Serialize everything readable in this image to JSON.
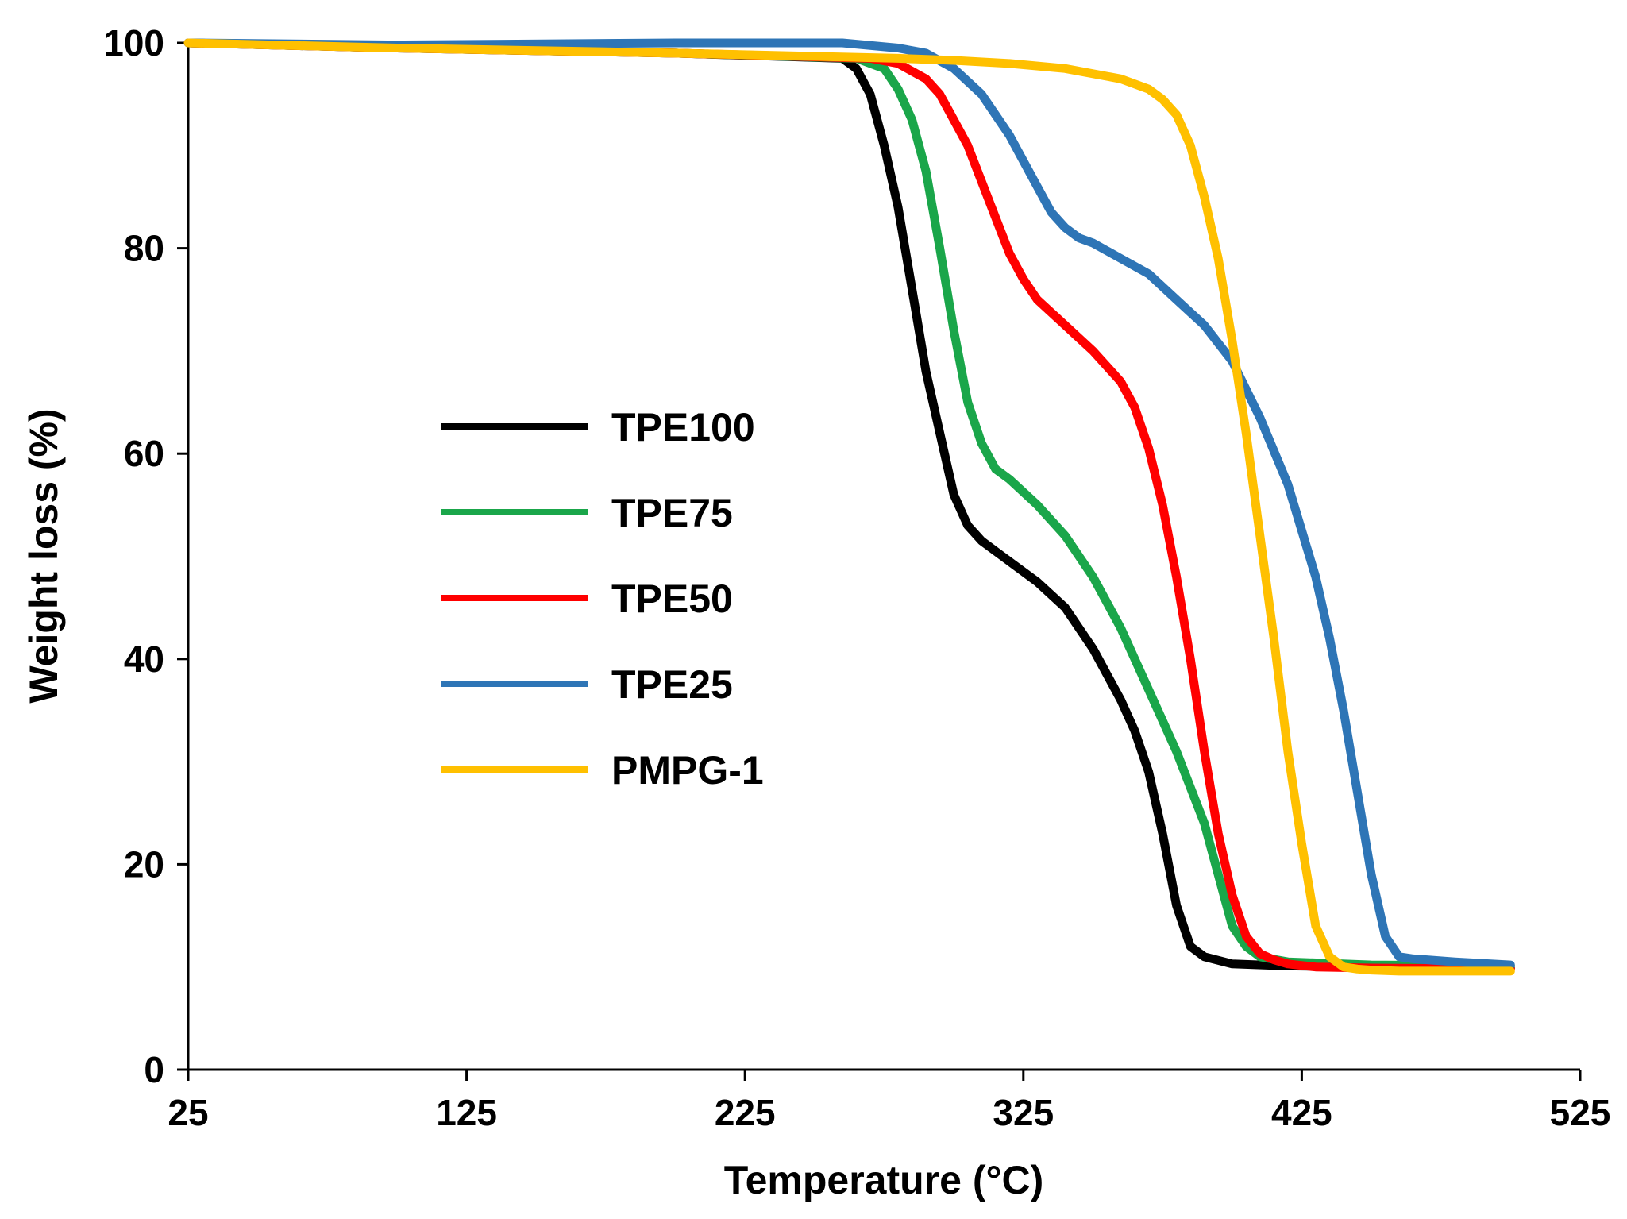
{
  "chart_data": {
    "type": "line",
    "title": "",
    "xlabel": "Temperature (°C)",
    "ylabel": "Weight loss (%)",
    "xlim": [
      25,
      525
    ],
    "ylim": [
      0,
      100
    ],
    "xticks": [
      25,
      125,
      225,
      325,
      425,
      525
    ],
    "yticks": [
      0,
      20,
      40,
      60,
      80,
      100
    ],
    "grid": false,
    "legend_position": "center-left",
    "series": [
      {
        "name": "TPE100",
        "color": "#000000",
        "x": [
          25,
          100,
          200,
          260,
          265,
          270,
          275,
          280,
          285,
          290,
          295,
          300,
          305,
          310,
          315,
          320,
          330,
          340,
          350,
          360,
          365,
          370,
          375,
          380,
          385,
          390,
          400,
          420,
          450,
          500
        ],
        "y": [
          100,
          99.5,
          99,
          98.5,
          97.5,
          95,
          90,
          84,
          76,
          68,
          62,
          56,
          53,
          51.5,
          50.5,
          49.5,
          47.5,
          45,
          41,
          36,
          33,
          29,
          23,
          16,
          12,
          11,
          10.3,
          10.1,
          10,
          9.9
        ]
      },
      {
        "name": "TPE75",
        "color": "#1aa64a",
        "x": [
          25,
          100,
          200,
          265,
          275,
          280,
          285,
          290,
          295,
          300,
          305,
          310,
          315,
          320,
          330,
          340,
          350,
          360,
          370,
          380,
          390,
          395,
          400,
          405,
          410,
          420,
          450,
          500
        ],
        "y": [
          100,
          99.5,
          99,
          98.5,
          97.5,
          95.5,
          92.5,
          87.5,
          80,
          72,
          65,
          61,
          58.5,
          57.5,
          55,
          52,
          48,
          43,
          37,
          31,
          24,
          19,
          14,
          12,
          11,
          10.5,
          10.2,
          10.1
        ]
      },
      {
        "name": "TPE50",
        "color": "#ff0000",
        "x": [
          25,
          100,
          200,
          270,
          280,
          290,
          295,
          300,
          305,
          310,
          315,
          320,
          325,
          330,
          340,
          350,
          360,
          365,
          370,
          375,
          380,
          385,
          390,
          395,
          400,
          405,
          410,
          415,
          420,
          430,
          450,
          500
        ],
        "y": [
          100,
          99.5,
          99,
          98.5,
          98,
          96.5,
          95,
          92.5,
          90,
          86.5,
          83,
          79.5,
          77,
          75,
          72.5,
          70,
          67,
          64.5,
          60.5,
          55,
          48,
          40,
          31,
          23,
          17,
          13,
          11.3,
          10.7,
          10.3,
          10,
          9.9,
          9.8
        ]
      },
      {
        "name": "TPE25",
        "color": "#2e75b6",
        "x": [
          25,
          100,
          200,
          260,
          280,
          290,
          300,
          310,
          315,
          320,
          325,
          330,
          335,
          340,
          345,
          350,
          360,
          370,
          380,
          390,
          400,
          410,
          420,
          430,
          435,
          440,
          445,
          450,
          455,
          460,
          465,
          470,
          480,
          500
        ],
        "y": [
          100,
          99.8,
          100,
          100,
          99.5,
          99,
          97.5,
          95,
          93,
          91,
          88.5,
          86,
          83.5,
          82,
          81,
          80.5,
          79,
          77.5,
          75,
          72.5,
          69,
          63.5,
          57,
          48,
          42,
          35,
          27,
          19,
          13,
          11,
          10.8,
          10.7,
          10.5,
          10.2
        ]
      },
      {
        "name": "PMPG-1",
        "color": "#ffc000",
        "x": [
          25,
          100,
          200,
          280,
          300,
          320,
          340,
          360,
          370,
          375,
          380,
          385,
          390,
          395,
          400,
          405,
          410,
          415,
          420,
          425,
          430,
          435,
          440,
          445,
          450,
          460,
          480,
          500
        ],
        "y": [
          100,
          99.5,
          99,
          98.5,
          98.3,
          98,
          97.5,
          96.5,
          95.5,
          94.5,
          93,
          90,
          85,
          79,
          71,
          62,
          52,
          42,
          31,
          22,
          14,
          11,
          10,
          9.8,
          9.7,
          9.6,
          9.6,
          9.6
        ]
      }
    ]
  }
}
